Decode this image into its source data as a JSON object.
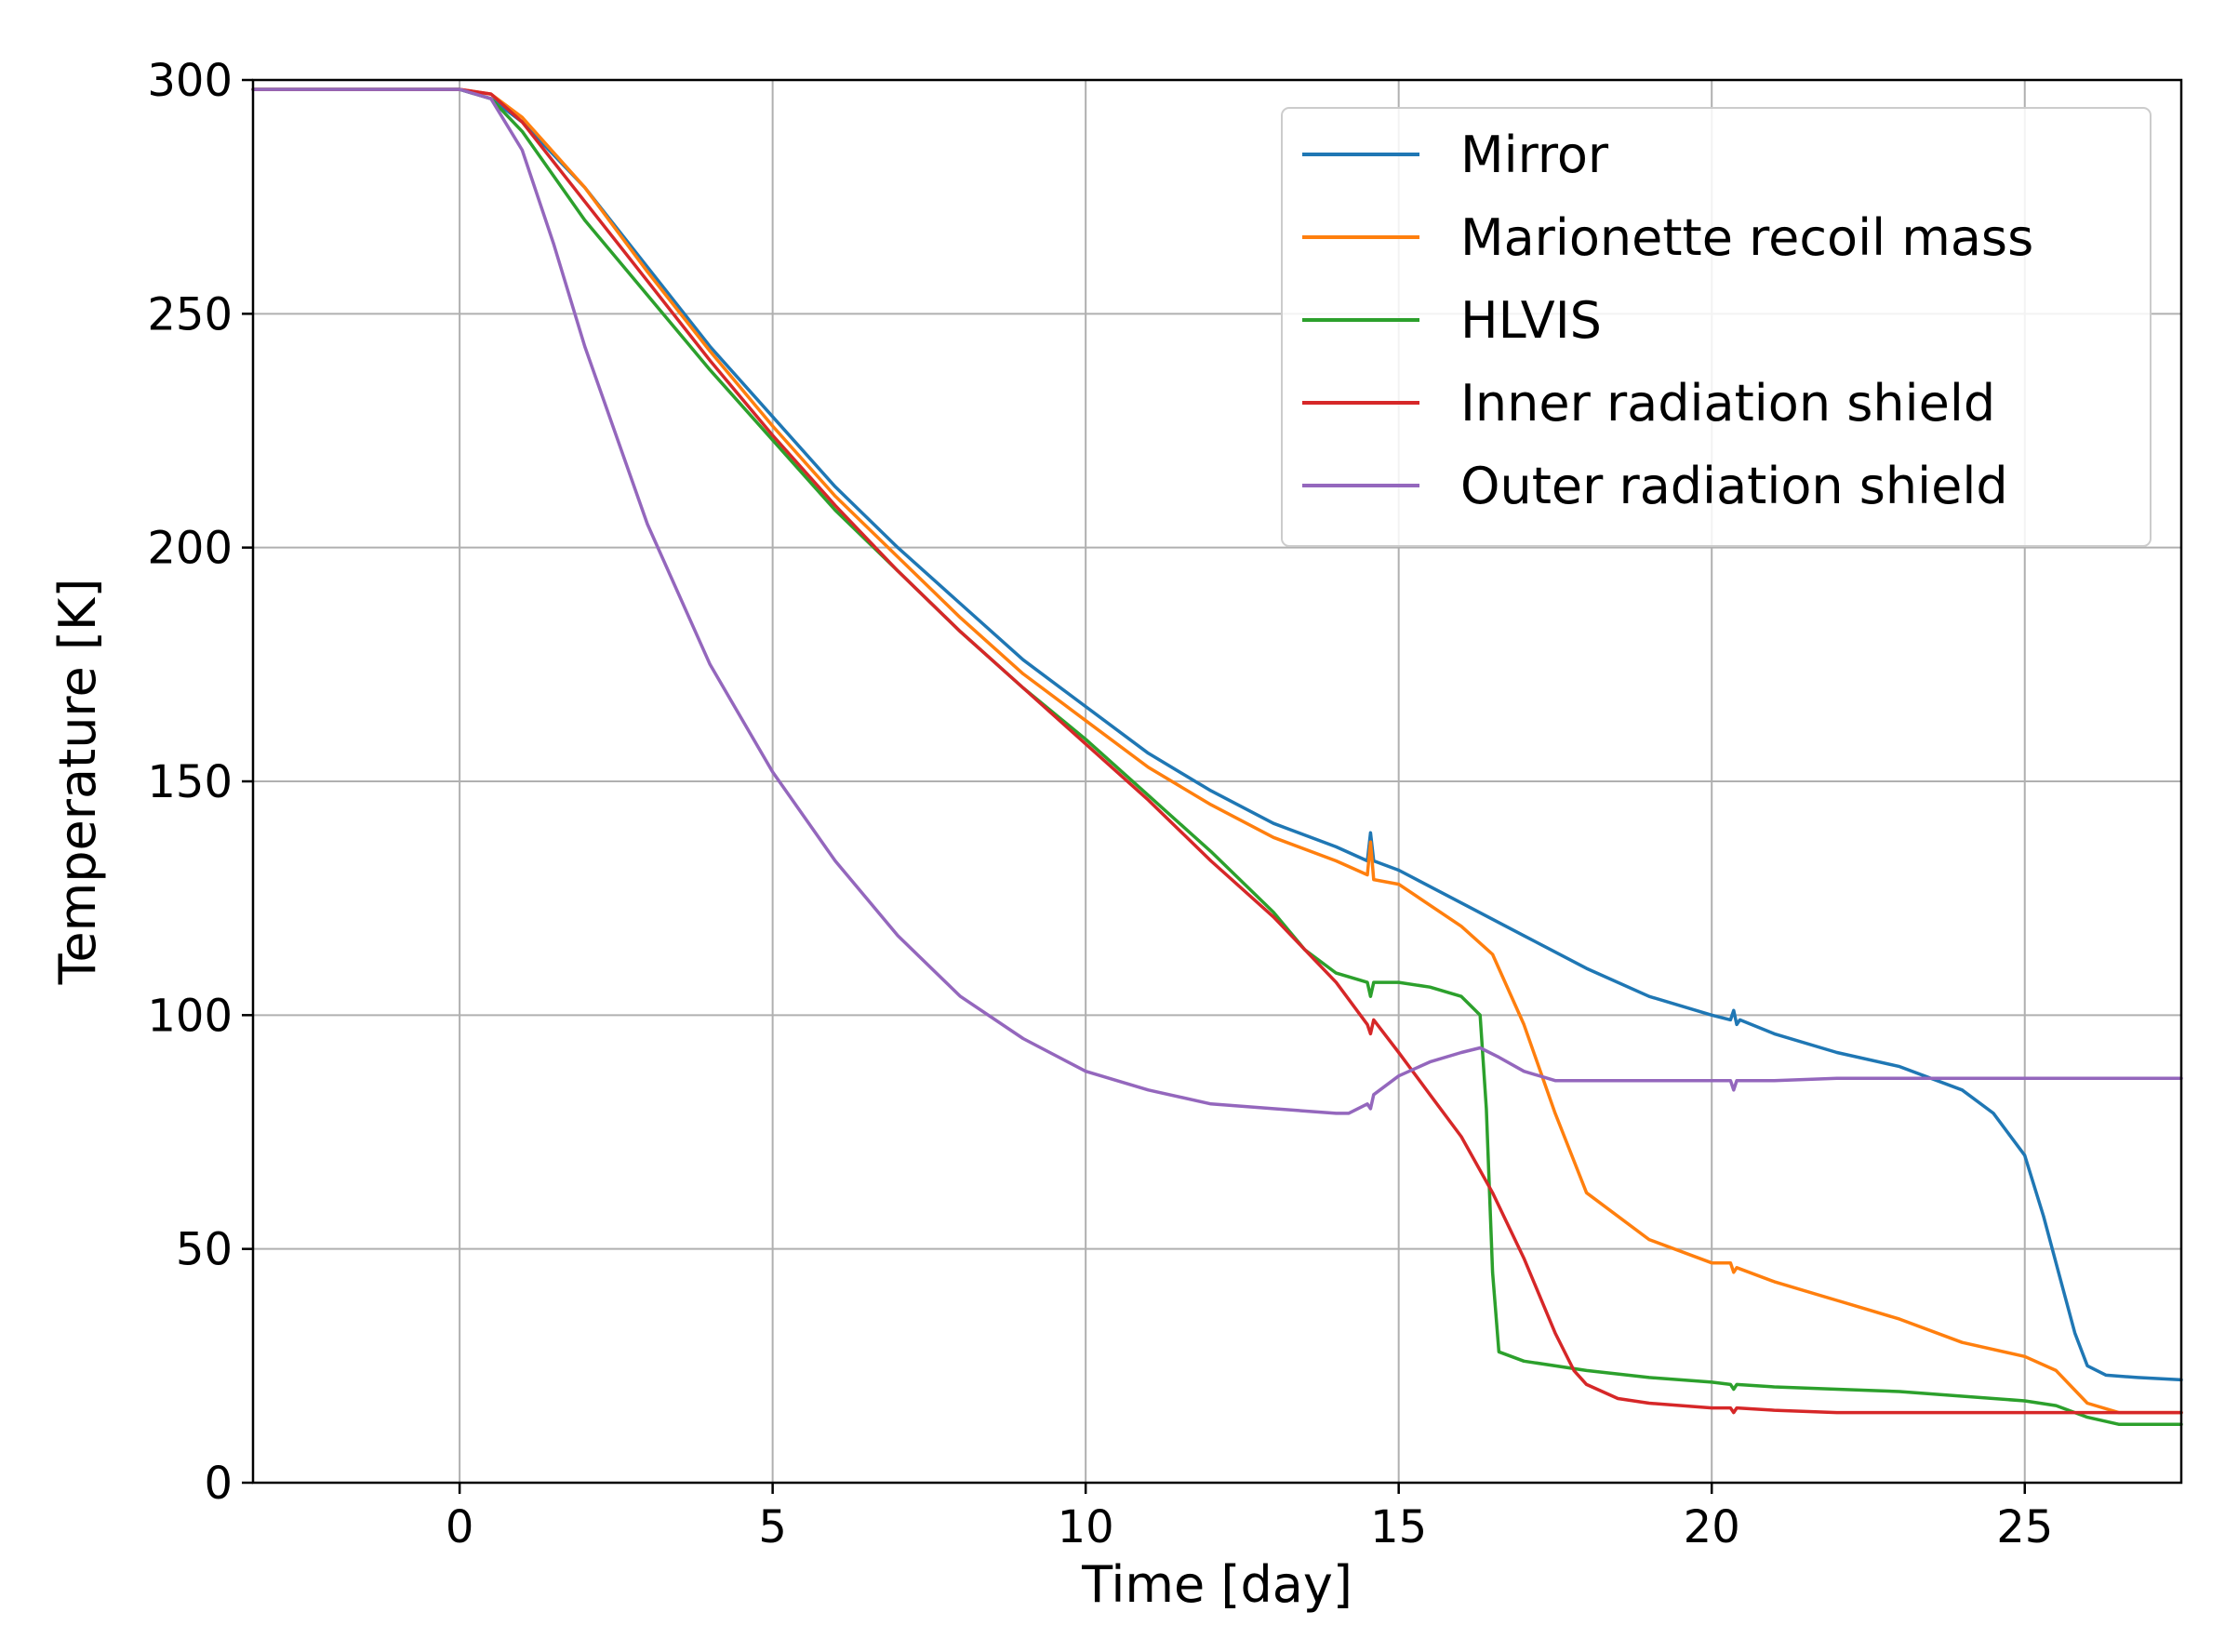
{
  "chart_data": {
    "type": "line",
    "title": "",
    "xlabel": "Time [day]",
    "ylabel": "Temperature [K]",
    "xlim": [
      -3.3,
      27.5
    ],
    "ylim": [
      0,
      300
    ],
    "xticks": [
      0,
      5,
      10,
      15,
      20,
      25
    ],
    "yticks": [
      0,
      50,
      100,
      150,
      200,
      250,
      300
    ],
    "grid": true,
    "legend_position": "top-right",
    "series": [
      {
        "name": "Mirror",
        "color": "#1f77b4",
        "x": [
          -3.3,
          0,
          0.5,
          1,
          2,
          3,
          4,
          5,
          6,
          7,
          8,
          9,
          10,
          11,
          12,
          13,
          14,
          14.5,
          14.55,
          14.6,
          15,
          16,
          17,
          18,
          19,
          20,
          20.3,
          20.35,
          20.4,
          20.45,
          21,
          22,
          23,
          24,
          24.5,
          25,
          25.3,
          25.6,
          25.8,
          26,
          26.3,
          26.8,
          27.5
        ],
        "y": [
          298,
          298,
          296,
          291,
          277,
          260,
          243,
          228,
          213,
          200,
          188,
          176,
          166,
          156,
          148,
          141,
          136,
          133,
          139,
          133,
          131,
          124,
          117,
          110,
          104,
          100,
          99,
          101,
          98,
          99,
          96,
          92,
          89,
          84,
          79,
          70,
          57,
          42,
          32,
          25,
          23,
          22.5,
          22
        ]
      },
      {
        "name": "Marionette recoil mass",
        "color": "#ff7f0e",
        "x": [
          -3.3,
          0,
          0.5,
          1,
          2,
          3,
          4,
          5,
          6,
          7,
          8,
          9,
          10,
          11,
          12,
          13,
          14,
          14.5,
          14.55,
          14.6,
          15,
          16,
          16.5,
          17,
          17.5,
          18,
          19,
          20,
          20.3,
          20.35,
          20.4,
          21,
          22,
          23,
          24,
          25,
          25.5,
          26,
          26.5,
          27.5
        ],
        "y": [
          298,
          298,
          297,
          292,
          277,
          259,
          242,
          226,
          211,
          198,
          185,
          173,
          163,
          153,
          145,
          138,
          133,
          130,
          137,
          129,
          128,
          119,
          113,
          98,
          79,
          62,
          52,
          47,
          47,
          45,
          46,
          43,
          39,
          35,
          30,
          27,
          24,
          17,
          15,
          15
        ]
      },
      {
        "name": "HLVIS",
        "color": "#2ca02c",
        "x": [
          -3.3,
          0,
          0.5,
          1,
          2,
          3,
          4,
          5,
          6,
          7,
          8,
          9,
          10,
          11,
          12,
          13,
          13.5,
          14,
          14.5,
          14.55,
          14.6,
          15,
          15.5,
          16,
          16.3,
          16.4,
          16.5,
          16.6,
          17,
          18,
          19,
          20,
          20.3,
          20.35,
          20.4,
          21,
          22,
          23,
          24,
          25,
          25.5,
          26,
          26.5,
          27.5
        ],
        "y": [
          298,
          298,
          296,
          289,
          270,
          254,
          238,
          223,
          208,
          195,
          182,
          170,
          159,
          147,
          135,
          122,
          114,
          109,
          107,
          104,
          107,
          107,
          106,
          104,
          100,
          80,
          45,
          28,
          26,
          24,
          22.5,
          21.5,
          21,
          20,
          21,
          20.5,
          20,
          19.5,
          18.5,
          17.5,
          16.5,
          14,
          12.5,
          12.5
        ]
      },
      {
        "name": "Inner radiation shield",
        "color": "#d62728",
        "x": [
          -3.3,
          0,
          0.5,
          1,
          2,
          3,
          4,
          5,
          6,
          7,
          8,
          9,
          10,
          11,
          12,
          13,
          14,
          14.5,
          14.55,
          14.6,
          15,
          15.5,
          16,
          16.5,
          17,
          17.5,
          17.8,
          18,
          18.5,
          19,
          20,
          20.3,
          20.35,
          20.4,
          21,
          22,
          23,
          24,
          25,
          26,
          27.5
        ],
        "y": [
          298,
          298,
          297,
          291,
          274,
          257,
          240,
          224,
          209,
          195,
          182,
          170,
          158,
          146,
          133,
          121,
          107,
          98,
          96,
          99,
          92,
          83,
          74,
          62,
          48,
          32,
          24,
          21,
          18,
          17,
          16,
          16,
          15,
          16,
          15.5,
          15,
          15,
          15,
          15,
          15,
          15
        ]
      },
      {
        "name": "Outer radiation shield",
        "color": "#9467bd",
        "x": [
          -3.3,
          -2,
          0,
          0.5,
          1,
          1.5,
          2,
          3,
          4,
          5,
          6,
          7,
          8,
          9,
          10,
          11,
          12,
          13,
          14,
          14.2,
          14.5,
          14.55,
          14.6,
          15,
          15.5,
          16,
          16.3,
          16.6,
          17,
          17.5,
          18,
          19,
          20,
          20.3,
          20.35,
          20.4,
          21,
          22,
          23,
          24,
          25,
          26,
          27.5
        ],
        "y": [
          298,
          298,
          298,
          296,
          285,
          265,
          243,
          205,
          175,
          152,
          133,
          117,
          104,
          95,
          88,
          84,
          81,
          80,
          79,
          79,
          81,
          80,
          83,
          87,
          90,
          92,
          93,
          91,
          88,
          86,
          86,
          86,
          86,
          86,
          84,
          86,
          86,
          86.5,
          86.5,
          86.5,
          86.5,
          86.5,
          86.5
        ]
      }
    ]
  }
}
